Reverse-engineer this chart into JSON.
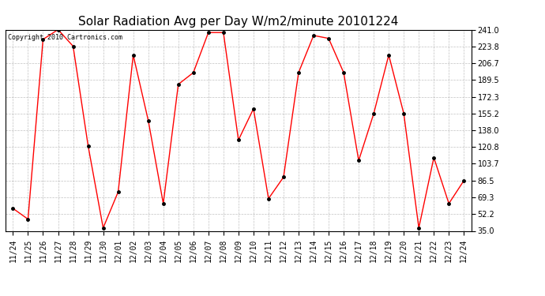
{
  "title": "Solar Radiation Avg per Day W/m2/minute 20101224",
  "watermark": "Copyright 2010 Cartronics.com",
  "labels": [
    "11/24",
    "11/25",
    "11/26",
    "11/27",
    "11/28",
    "11/29",
    "11/30",
    "12/01",
    "12/02",
    "12/03",
    "12/04",
    "12/05",
    "12/06",
    "12/07",
    "12/08",
    "12/09",
    "12/10",
    "12/11",
    "12/12",
    "12/13",
    "12/14",
    "12/15",
    "12/16",
    "12/17",
    "12/18",
    "12/19",
    "12/20",
    "12/21",
    "12/22",
    "12/23",
    "12/24"
  ],
  "values": [
    58.0,
    47.0,
    231.0,
    241.0,
    224.0,
    122.0,
    38.0,
    75.0,
    215.0,
    148.0,
    63.0,
    185.0,
    197.0,
    238.0,
    238.0,
    128.0,
    160.0,
    68.0,
    90.0,
    197.0,
    235.0,
    232.0,
    197.0,
    107.0,
    155.0,
    215.0,
    155.0,
    38.0,
    110.0,
    63.0,
    86.5
  ],
  "yticks": [
    35.0,
    52.2,
    69.3,
    86.5,
    103.7,
    120.8,
    138.0,
    155.2,
    172.3,
    189.5,
    206.7,
    223.8,
    241.0
  ],
  "ymin": 35.0,
  "ymax": 241.0,
  "line_color": "#ff0000",
  "marker_color": "#000000",
  "background_color": "#ffffff",
  "grid_color": "#999999",
  "title_fontsize": 11,
  "watermark_fontsize": 6,
  "tick_fontsize": 7
}
